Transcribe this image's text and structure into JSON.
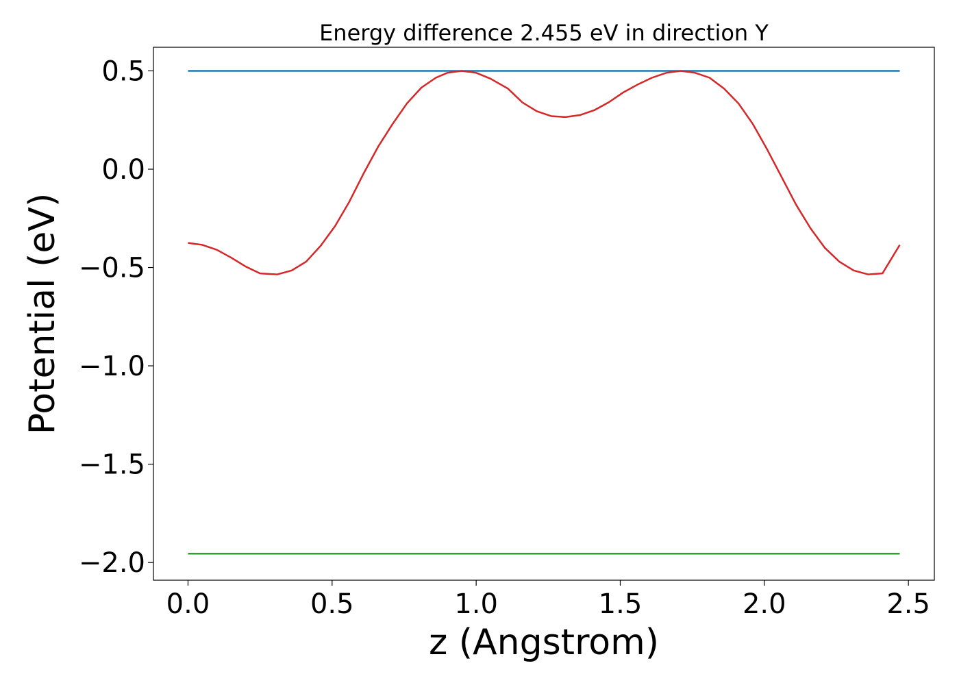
{
  "chart_data": {
    "type": "line",
    "title": "Energy difference 2.455 eV in direction Y",
    "xlabel": "z (Angstrom)",
    "ylabel": "Potential (eV)",
    "xlim": [
      -0.12,
      2.59
    ],
    "ylim": [
      -2.09,
      0.62
    ],
    "xticks": [
      0.0,
      0.5,
      1.0,
      1.5,
      2.0,
      2.5
    ],
    "xtick_labels": [
      "0.0",
      "0.5",
      "1.0",
      "1.5",
      "2.0",
      "2.5"
    ],
    "yticks": [
      0.5,
      0.0,
      -0.5,
      -1.0,
      -1.5,
      -2.0
    ],
    "ytick_labels": [
      "0.5",
      "0.0",
      "−0.5",
      "−1.0",
      "−1.5",
      "−2.0"
    ],
    "grid": false,
    "series": [
      {
        "color": "#1f77b4",
        "x": [
          0.0,
          2.47
        ],
        "y": [
          0.5,
          0.5
        ]
      },
      {
        "color": "#2ca02c",
        "x": [
          0.0,
          2.47
        ],
        "y": [
          -1.955,
          -1.955
        ]
      },
      {
        "color": "#d62728",
        "x": [
          0.0,
          0.05,
          0.1,
          0.15,
          0.2,
          0.25,
          0.31,
          0.36,
          0.41,
          0.46,
          0.51,
          0.56,
          0.61,
          0.66,
          0.71,
          0.76,
          0.81,
          0.86,
          0.9,
          0.95,
          1.0,
          1.05,
          1.11,
          1.16,
          1.21,
          1.26,
          1.31,
          1.36,
          1.41,
          1.46,
          1.51,
          1.56,
          1.61,
          1.66,
          1.71,
          1.76,
          1.81,
          1.86,
          1.91,
          1.96,
          2.01,
          2.06,
          2.11,
          2.16,
          2.21,
          2.26,
          2.31,
          2.36,
          2.41,
          2.47
        ],
        "y": [
          -0.375,
          -0.385,
          -0.41,
          -0.45,
          -0.495,
          -0.53,
          -0.535,
          -0.515,
          -0.47,
          -0.39,
          -0.29,
          -0.165,
          -0.02,
          0.115,
          0.23,
          0.335,
          0.415,
          0.465,
          0.49,
          0.5,
          0.49,
          0.46,
          0.41,
          0.34,
          0.295,
          0.27,
          0.265,
          0.275,
          0.3,
          0.34,
          0.39,
          0.43,
          0.465,
          0.49,
          0.5,
          0.49,
          0.465,
          0.41,
          0.335,
          0.23,
          0.1,
          -0.04,
          -0.18,
          -0.3,
          -0.4,
          -0.47,
          -0.515,
          -0.535,
          -0.53,
          -0.385
        ]
      }
    ]
  }
}
